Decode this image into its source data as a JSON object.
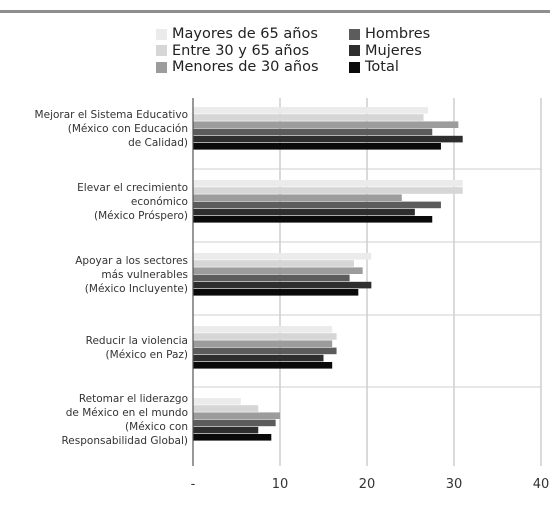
{
  "chart_data": {
    "type": "bar",
    "orientation": "horizontal",
    "categories": [
      [
        "Mejorar el Sistema Educativo",
        "(México con Educación",
        "de Calidad)"
      ],
      [
        "Elevar el crecimiento",
        "económico",
        "(México Próspero)"
      ],
      [
        "Apoyar a los sectores",
        "más vulnerables",
        "(México Incluyente)"
      ],
      [
        "Reducir la violencia",
        "(México en Paz)"
      ],
      [
        "Retomar el liderazgo",
        "de México en el mundo",
        "(México con",
        "Responsabilidad Global)"
      ]
    ],
    "series": [
      {
        "name": "Mayores de 65 años",
        "color": "#ebebeb",
        "values": [
          27,
          31,
          20.5,
          16,
          5.5
        ]
      },
      {
        "name": "Entre 30 y 65 años",
        "color": "#d6d6d6",
        "values": [
          26.5,
          31,
          18.5,
          16.5,
          7.5
        ]
      },
      {
        "name": "Menores de 30 años",
        "color": "#9c9c9c",
        "values": [
          30.5,
          24,
          19.5,
          16,
          10
        ]
      },
      {
        "name": "Hombres",
        "color": "#5c5c5c",
        "values": [
          27.5,
          28.5,
          18,
          16.5,
          9.5
        ]
      },
      {
        "name": "Mujeres",
        "color": "#2e2e2e",
        "values": [
          31,
          25.5,
          20.5,
          15,
          7.5
        ]
      },
      {
        "name": "Total",
        "color": "#0a0a0a",
        "values": [
          28.5,
          27.5,
          19,
          16,
          9
        ]
      }
    ],
    "xlim": [
      0,
      40
    ],
    "xticks": [
      0,
      10,
      20,
      30,
      40
    ],
    "xtick_labels": [
      "-",
      "10",
      "20",
      "30",
      "40"
    ],
    "grid": true,
    "legend": "top"
  },
  "legend": {
    "col1": [
      "Mayores de 65 años",
      "Entre 30 y 65 años",
      "Menores de 30 años"
    ],
    "col2": [
      "Hombres",
      "Mujeres",
      "Total"
    ]
  }
}
